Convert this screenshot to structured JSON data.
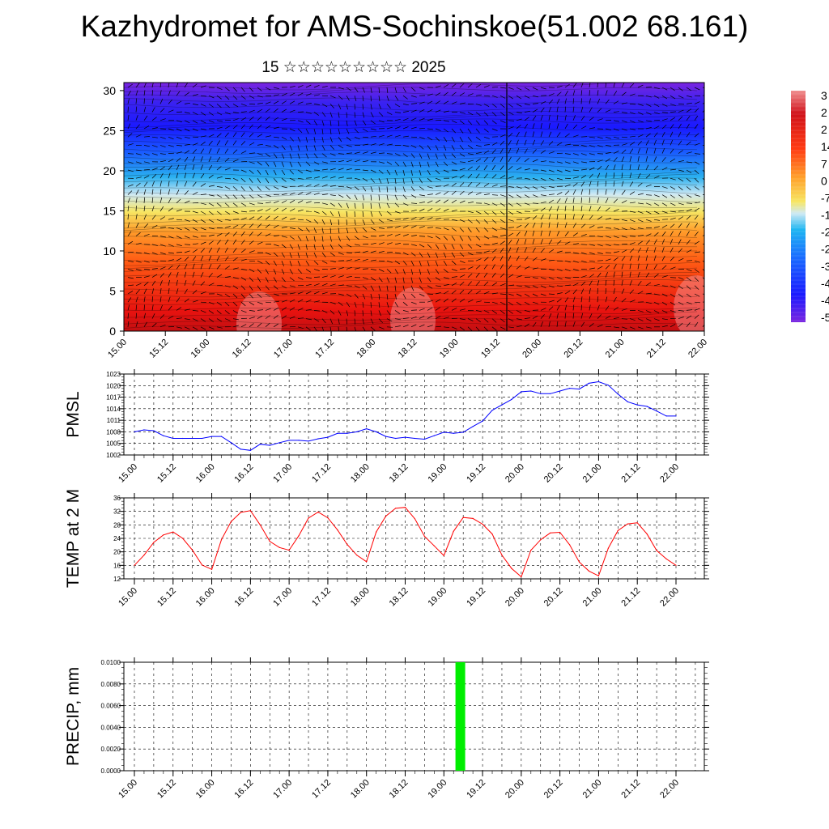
{
  "page": {
    "title": "Kazhydromet for AMS-Sochinskoe(51.002 68.161)",
    "subtitle": "15 ☆☆☆☆☆☆☆☆☆ 2025"
  },
  "time_ticks": [
    "15.00",
    "15.12",
    "16.00",
    "16.12",
    "17.00",
    "17.12",
    "18.00",
    "18.12",
    "19.00",
    "19.12",
    "20.00",
    "20.12",
    "21.00",
    "21.12",
    "22.00"
  ],
  "chart_data": [
    {
      "type": "heatmap",
      "name": "vertical-section",
      "x_labels": [
        "15.00",
        "15.12",
        "16.00",
        "16.12",
        "17.00",
        "17.12",
        "18.00",
        "18.12",
        "19.00",
        "19.12",
        "20.00",
        "20.12",
        "21.00",
        "21.12",
        "22.00"
      ],
      "y_ticks": [
        0,
        5,
        10,
        15,
        20,
        25,
        30
      ],
      "ylim": [
        0,
        31
      ],
      "colorbar_labels": [
        "3",
        "2",
        "2",
        "14",
        "7",
        "0",
        "-7",
        "-1",
        "-2",
        "-2",
        "-3",
        "-4",
        "-4",
        "-5"
      ],
      "colors": {
        "warm": "#e8120f",
        "mid": "#f7e663",
        "cold": "#1a1aff",
        "top": "#7a25e0"
      },
      "overlay": "wind barbs"
    },
    {
      "type": "line",
      "ylabel": "PMSL",
      "ylim": [
        1002,
        1023
      ],
      "y_ticks": [
        "1002",
        "1005",
        "1008",
        "1011",
        "1014",
        "1017",
        "1020",
        "1023"
      ],
      "x_labels": [
        "15.00",
        "15.12",
        "16.00",
        "16.12",
        "17.00",
        "17.12",
        "18.00",
        "18.12",
        "19.00",
        "19.12",
        "20.00",
        "20.12",
        "21.00",
        "21.12",
        "22.00"
      ],
      "color": "#0000ff",
      "x": [
        0,
        1,
        2,
        3,
        4,
        5,
        6,
        7,
        8,
        9,
        10,
        11,
        12,
        13,
        14,
        15,
        16,
        17,
        18,
        19,
        20,
        21,
        22,
        23,
        24,
        25,
        26,
        27,
        28,
        29,
        30,
        31,
        32,
        33,
        34,
        35,
        36,
        37,
        38,
        39,
        40,
        41,
        42,
        43,
        44,
        45,
        46,
        47,
        48,
        49,
        50,
        51,
        52,
        53,
        54,
        55,
        56
      ],
      "values": [
        1008.0,
        1008.5,
        1008.3,
        1007.0,
        1006.3,
        1006.3,
        1006.3,
        1006.3,
        1006.8,
        1006.8,
        1005.2,
        1003.5,
        1003.2,
        1004.8,
        1004.5,
        1005.2,
        1005.8,
        1005.8,
        1005.6,
        1006.2,
        1006.6,
        1007.6,
        1007.6,
        1008.0,
        1008.8,
        1008.0,
        1006.8,
        1006.3,
        1006.6,
        1006.3,
        1006.1,
        1007.0,
        1007.9,
        1007.6,
        1007.9,
        1009.4,
        1010.8,
        1013.6,
        1015.0,
        1016.4,
        1018.4,
        1018.6,
        1017.9,
        1017.9,
        1018.6,
        1019.3,
        1019.1,
        1020.6,
        1021.0,
        1020.1,
        1017.8,
        1015.8,
        1015.0,
        1014.6,
        1013.4,
        1012.1,
        1012.1
      ]
    },
    {
      "type": "line",
      "ylabel": "TEMP at 2 M",
      "ylim": [
        12,
        36
      ],
      "y_ticks": [
        "12",
        "16",
        "20",
        "24",
        "28",
        "32",
        "36"
      ],
      "x_labels": [
        "15.00",
        "15.12",
        "16.00",
        "16.12",
        "17.00",
        "17.12",
        "18.00",
        "18.12",
        "19.00",
        "19.12",
        "20.00",
        "20.12",
        "21.00",
        "21.12",
        "22.00"
      ],
      "color": "#ff0000",
      "x": [
        0,
        1,
        2,
        3,
        4,
        5,
        6,
        7,
        8,
        9,
        10,
        11,
        12,
        13,
        14,
        15,
        16,
        17,
        18,
        19,
        20,
        21,
        22,
        23,
        24,
        25,
        26,
        27,
        28,
        29,
        30,
        31,
        32,
        33,
        34,
        35,
        36,
        37,
        38,
        39,
        40,
        41,
        42,
        43,
        44,
        45,
        46,
        47,
        48,
        49,
        50,
        51,
        52,
        53,
        54,
        55,
        56
      ],
      "values": [
        16.0,
        19.0,
        22.8,
        25.0,
        25.9,
        24.0,
        20.5,
        16.1,
        14.8,
        23.6,
        29.0,
        31.7,
        32.2,
        28.0,
        23.1,
        21.3,
        20.5,
        24.8,
        30.0,
        31.8,
        30.1,
        26.5,
        22.2,
        19.0,
        17.1,
        25.9,
        30.6,
        32.9,
        33.2,
        29.8,
        24.6,
        21.8,
        18.9,
        26.1,
        30.2,
        29.9,
        28.2,
        25.3,
        19.0,
        15.1,
        12.6,
        20.5,
        23.6,
        25.6,
        25.8,
        22.1,
        17.0,
        14.3,
        12.9,
        21.1,
        26.3,
        28.3,
        28.6,
        25.3,
        20.4,
        17.9,
        16.0
      ]
    },
    {
      "type": "bar",
      "ylabel": "PRECIP, mm",
      "ylim": [
        0,
        0.01
      ],
      "y_ticks": [
        "0.0000",
        "0.0020",
        "0.0040",
        "0.0060",
        "0.0080",
        "0.0100"
      ],
      "x_labels": [
        "15.00",
        "15.12",
        "16.00",
        "16.12",
        "17.00",
        "17.12",
        "18.00",
        "18.12",
        "19.00",
        "19.12",
        "20.00",
        "20.12",
        "21.00",
        "21.12",
        "22.00"
      ],
      "color": "#00ee00",
      "bars": [
        {
          "x": 33.7,
          "value": 0.01
        }
      ]
    }
  ]
}
